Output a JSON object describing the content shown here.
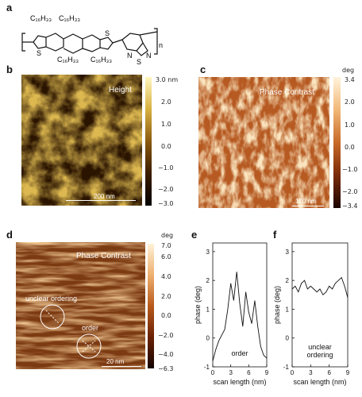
{
  "panels": {
    "a": {
      "label": "a",
      "chem": {
        "sub1": "C₁₆H₃₃",
        "sub2": "C₁₆H₃₃",
        "sub3": "C₁₆H₃₃",
        "sub4": "C₁₆H₃₃",
        "s1": "S",
        "s2": "S",
        "n1": "N",
        "n2": "N",
        "s3": "S",
        "rep": "n"
      }
    },
    "b": {
      "label": "b",
      "title": "Height",
      "scale_text": "200 nm",
      "colorbar_unit": "3.0 nm",
      "ticks": [
        "2.0",
        "1.0",
        "0.0",
        "−1.0",
        "−2.0",
        "−3.0"
      ]
    },
    "c": {
      "label": "c",
      "title": "Phase Contrast",
      "scale_text": "100 nm",
      "colorbar_unit": "deg",
      "ticks": [
        "3.4",
        "2.0",
        "1.0",
        "0.0",
        "−1.0",
        "−2.0",
        "−3.4"
      ]
    },
    "d": {
      "label": "d",
      "title": "Phase Contrast",
      "scale_text": "20 nm",
      "colorbar_unit": "deg",
      "ticks": [
        "7.0",
        "6.0",
        "4.0",
        "2.0",
        "0.0",
        "−2.0",
        "−4.0",
        "−6.3"
      ],
      "annotation_unclear": "unclear ordering",
      "annotation_order": "order"
    },
    "e": {
      "label": "e",
      "inner_text": "order"
    },
    "f": {
      "label": "f",
      "inner_text_line1": "unclear",
      "inner_text_line2": "ordering"
    }
  },
  "chart_data": [
    {
      "type": "line",
      "panel": "e",
      "xlabel": "scan length (nm)",
      "ylabel": "phase (deg)",
      "xlim": [
        0,
        9
      ],
      "ylim": [
        -1,
        3.3
      ],
      "xticks": [
        "0",
        "3",
        "6",
        "9"
      ],
      "yticks": [
        "3",
        "2",
        "1",
        "0",
        "-1"
      ],
      "series": [
        {
          "x": [
            0,
            0.5,
            1,
            1.5,
            2,
            2.5,
            3,
            3.5,
            4,
            4.5,
            5,
            5.5,
            6,
            6.5,
            7,
            7.5,
            8,
            8.5,
            9
          ],
          "values": [
            -0.8,
            -0.4,
            -0.1,
            0.1,
            0.3,
            1.0,
            1.9,
            1.3,
            2.3,
            1.2,
            0.4,
            1.6,
            0.9,
            0.5,
            1.3,
            0.4,
            -0.3,
            -0.6,
            -0.7
          ]
        }
      ]
    },
    {
      "type": "line",
      "panel": "f",
      "xlabel": "scan length (nm)",
      "ylabel": "phase (deg)",
      "xlim": [
        0,
        9
      ],
      "ylim": [
        -1,
        3.3
      ],
      "xticks": [
        "0",
        "3",
        "6",
        "9"
      ],
      "yticks": [
        "3",
        "2",
        "1",
        "0",
        "-1"
      ],
      "series": [
        {
          "x": [
            0,
            0.5,
            1,
            1.5,
            2,
            2.5,
            3,
            3.5,
            4,
            4.5,
            5,
            5.5,
            6,
            6.5,
            7,
            7.5,
            8,
            8.5,
            9
          ],
          "values": [
            1.7,
            1.8,
            1.6,
            1.9,
            2.0,
            1.7,
            1.8,
            1.7,
            1.6,
            1.7,
            1.5,
            1.6,
            1.8,
            1.7,
            1.9,
            2.0,
            2.1,
            1.8,
            1.4
          ]
        }
      ]
    }
  ]
}
